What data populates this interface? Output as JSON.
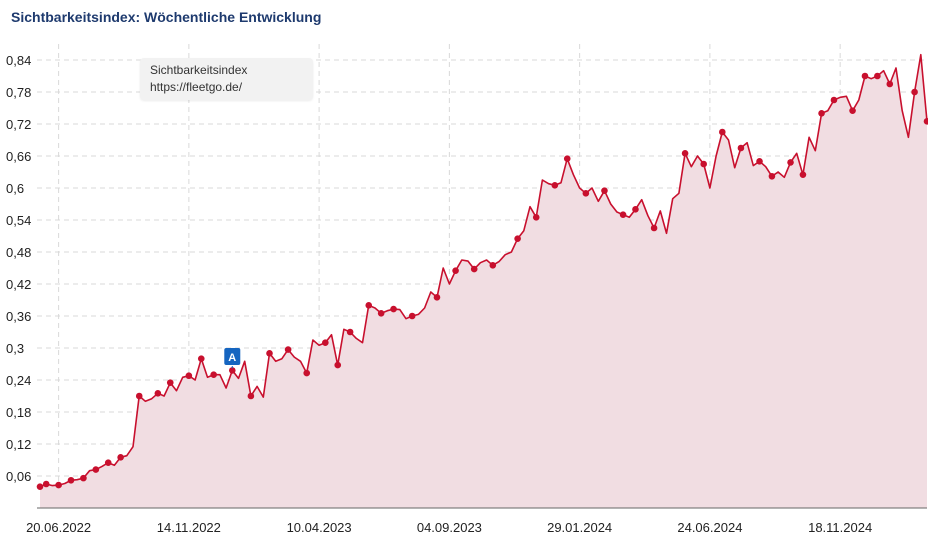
{
  "header": {
    "title": "Sichtbarkeitsindex: Wöchentliche Entwicklung"
  },
  "tooltip": {
    "line1": "Sichtbarkeitsindex",
    "line2": "https://fleetgo.de/"
  },
  "colors": {
    "line": "#c8102e",
    "fill": "#f1dde2",
    "grid": "#d9d9d9",
    "marker_bg": "#1565c0"
  },
  "chart_data": {
    "type": "area",
    "title": "Sichtbarkeitsindex: Wöchentliche Entwicklung",
    "xlabel": "",
    "ylabel": "",
    "ylim": [
      0.0,
      0.87
    ],
    "y_ticks": [
      "0,06",
      "0,12",
      "0,18",
      "0,24",
      "0,3",
      "0,36",
      "0,42",
      "0,48",
      "0,54",
      "0,6",
      "0,66",
      "0,72",
      "0,78",
      "0,84"
    ],
    "x_ticks": [
      "20.06.2022",
      "14.11.2022",
      "10.04.2023",
      "04.09.2023",
      "29.01.2024",
      "24.06.2024",
      "18.11.2024"
    ],
    "grid": true,
    "annotations": [
      {
        "label": "A",
        "week": 31
      }
    ],
    "series": [
      {
        "values": [
          0.04,
          0.045,
          0.042,
          0.043,
          0.046,
          0.052,
          0.053,
          0.056,
          0.07,
          0.072,
          0.078,
          0.085,
          0.08,
          0.095,
          0.098,
          0.115,
          0.21,
          0.2,
          0.205,
          0.215,
          0.21,
          0.235,
          0.22,
          0.245,
          0.248,
          0.24,
          0.28,
          0.245,
          0.25,
          0.25,
          0.225,
          0.258,
          0.243,
          0.275,
          0.21,
          0.228,
          0.208,
          0.29,
          0.275,
          0.28,
          0.297,
          0.283,
          0.275,
          0.253,
          0.315,
          0.305,
          0.31,
          0.325,
          0.268,
          0.335,
          0.33,
          0.318,
          0.31,
          0.38,
          0.375,
          0.365,
          0.37,
          0.373,
          0.372,
          0.355,
          0.36,
          0.363,
          0.375,
          0.405,
          0.395,
          0.45,
          0.42,
          0.445,
          0.465,
          0.463,
          0.448,
          0.46,
          0.465,
          0.455,
          0.462,
          0.475,
          0.48,
          0.505,
          0.52,
          0.565,
          0.545,
          0.615,
          0.608,
          0.605,
          0.61,
          0.655,
          0.625,
          0.6,
          0.59,
          0.6,
          0.575,
          0.595,
          0.57,
          0.555,
          0.55,
          0.545,
          0.56,
          0.578,
          0.548,
          0.525,
          0.557,
          0.515,
          0.58,
          0.59,
          0.665,
          0.64,
          0.66,
          0.645,
          0.6,
          0.66,
          0.705,
          0.69,
          0.638,
          0.675,
          0.685,
          0.642,
          0.65,
          0.64,
          0.622,
          0.63,
          0.62,
          0.648,
          0.665,
          0.625,
          0.695,
          0.67,
          0.74,
          0.745,
          0.765,
          0.77,
          0.772,
          0.745,
          0.765,
          0.81,
          0.805,
          0.81,
          0.82,
          0.795,
          0.825,
          0.745,
          0.695,
          0.78,
          0.85,
          0.725
        ],
        "marked_weeks": [
          0,
          1,
          3,
          5,
          7,
          9,
          11,
          13,
          16,
          19,
          21,
          24,
          26,
          28,
          31,
          34,
          37,
          40,
          43,
          46,
          48,
          50,
          53,
          55,
          57,
          60,
          64,
          67,
          70,
          73,
          77,
          80,
          83,
          85,
          88,
          91,
          94,
          96,
          99,
          104,
          107,
          110,
          113,
          116,
          118,
          121,
          123,
          126,
          128,
          131,
          133,
          135,
          137,
          141,
          143
        ]
      }
    ]
  }
}
